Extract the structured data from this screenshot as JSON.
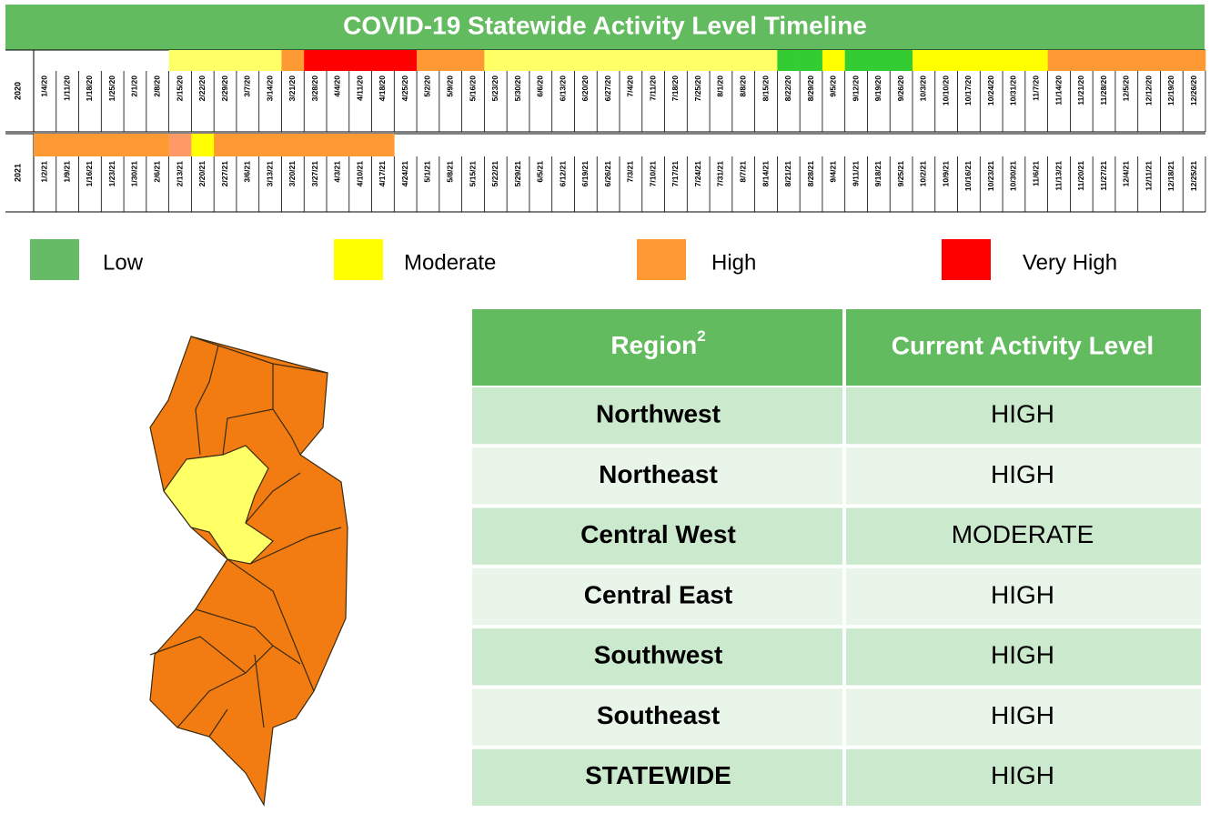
{
  "title": "COVID-19 Statewide Activity Level Timeline",
  "timeline": [
    {
      "year": "2020",
      "dates": [
        "1/4/20",
        "1/11/20",
        "1/18/20",
        "1/25/20",
        "2/1/20",
        "2/8/20",
        "2/15/20",
        "2/22/20",
        "2/29/20",
        "3/7/20",
        "3/14/20",
        "3/21/20",
        "3/28/20",
        "4/4/20",
        "4/11/20",
        "4/18/20",
        "4/25/20",
        "5/2/20",
        "5/9/20",
        "5/16/20",
        "5/23/20",
        "5/30/20",
        "6/6/20",
        "6/13/20",
        "6/20/20",
        "6/27/20",
        "7/4/20",
        "7/11/20",
        "7/18/20",
        "7/25/20",
        "8/1/20",
        "8/8/20",
        "8/15/20",
        "8/22/20",
        "8/29/20",
        "9/5/20",
        "9/12/20",
        "9/19/20",
        "9/26/20",
        "10/3/20",
        "10/10/20",
        "10/17/20",
        "10/24/20",
        "10/31/20",
        "11/7/20",
        "11/14/20",
        "11/21/20",
        "11/28/20",
        "12/5/20",
        "12/12/20",
        "12/19/20",
        "12/26/20"
      ],
      "colors": [
        null,
        null,
        null,
        null,
        null,
        null,
        "#ffff66",
        "#ffff66",
        "#ffff66",
        "#ffff66",
        "#ffff66",
        "#ff9933",
        "#ff0000",
        "#ff0000",
        "#ff0000",
        "#ff0000",
        "#ff0000",
        "#ff9933",
        "#ff9933",
        "#ff9933",
        "#ffff66",
        "#ffff66",
        "#ffff66",
        "#ffff66",
        "#ffff66",
        "#ffff66",
        "#ffff66",
        "#ffff66",
        "#ffff66",
        "#ffff66",
        "#ffff66",
        "#ffff66",
        "#ffff66",
        "#33cc33",
        "#33cc33",
        "#ffff00",
        "#33cc33",
        "#33cc33",
        "#33cc33",
        "#ffff00",
        "#ffff00",
        "#ffff00",
        "#ffff00",
        "#ffff00",
        "#ffff00",
        "#ff9933",
        "#ff9933",
        "#ff9933",
        "#ff9933",
        "#ff9933",
        "#ff9933",
        "#ff9933"
      ]
    },
    {
      "year": "2021",
      "dates": [
        "1/2/21",
        "1/9/21",
        "1/16/21",
        "1/23/21",
        "1/30/21",
        "2/6/21",
        "2/13/21",
        "2/20/21",
        "2/27/21",
        "3/6/21",
        "3/13/21",
        "3/20/21",
        "3/27/21",
        "4/3/21",
        "4/10/21",
        "4/17/21",
        "4/24/21",
        "5/1/21",
        "5/8/21",
        "5/15/21",
        "5/22/21",
        "5/29/21",
        "6/5/21",
        "6/12/21",
        "6/19/21",
        "6/26/21",
        "7/3/21",
        "7/10/21",
        "7/17/21",
        "7/24/21",
        "7/31/21",
        "8/7/21",
        "8/14/21",
        "8/21/21",
        "8/28/21",
        "9/4/21",
        "9/11/21",
        "9/18/21",
        "9/25/21",
        "10/2/21",
        "10/9/21",
        "10/16/21",
        "10/23/21",
        "10/30/21",
        "11/6/21",
        "11/13/21",
        "11/20/21",
        "11/27/21",
        "12/4/21",
        "12/11/21",
        "12/18/21",
        "12/25/21"
      ],
      "colors": [
        "#ff9933",
        "#ff9933",
        "#ff9933",
        "#ff9933",
        "#ff9933",
        "#ff9933",
        "#ff9966",
        "#ffff00",
        "#ff9933",
        "#ff9933",
        "#ff9933",
        "#ff9933",
        "#ff9933",
        "#ff9933",
        "#ff9933",
        "#ff9933",
        null,
        null,
        null,
        null,
        null,
        null,
        null,
        null,
        null,
        null,
        null,
        null,
        null,
        null,
        null,
        null,
        null,
        null,
        null,
        null,
        null,
        null,
        null,
        null,
        null,
        null,
        null,
        null,
        null,
        null,
        null,
        null,
        null,
        null,
        null,
        null
      ]
    }
  ],
  "legend": [
    {
      "label": "Low",
      "color": "#66bb66"
    },
    {
      "label": "Moderate",
      "color": "#ffff00"
    },
    {
      "label": "High",
      "color": "#ff9933"
    },
    {
      "label": "Very High",
      "color": "#ff0000"
    }
  ],
  "table": {
    "header": [
      "Region",
      "Current Activity Level"
    ],
    "header_sup": "2",
    "rows": [
      [
        "Northwest",
        "HIGH"
      ],
      [
        "Northeast",
        "HIGH"
      ],
      [
        "Central West",
        "MODERATE"
      ],
      [
        "Central East",
        "HIGH"
      ],
      [
        "Southwest",
        "HIGH"
      ],
      [
        "Southeast",
        "HIGH"
      ],
      [
        "STATEWIDE",
        "HIGH"
      ]
    ]
  }
}
